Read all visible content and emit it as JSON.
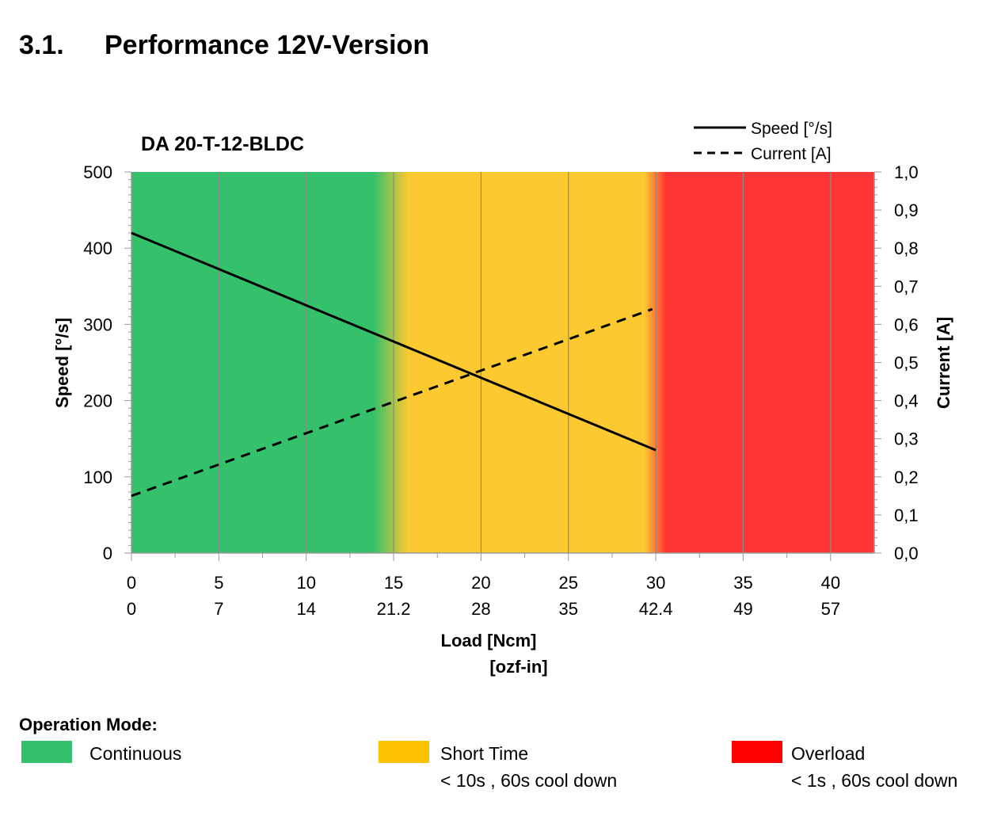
{
  "page": {
    "section_number": "3.1.",
    "section_title": "Performance 12V-Version"
  },
  "chart_data": {
    "type": "line",
    "title": "DA 20-T-12-BLDC",
    "xlabel": "Load [Ncm]",
    "xlabel2": "[ozf-in]",
    "ylabel": "Speed  [°/s]",
    "y2label": "Current  [A]",
    "xlim": [
      0,
      42.5
    ],
    "ylim": [
      0,
      500
    ],
    "y2lim": [
      0,
      1.0
    ],
    "x_ticks": [
      0,
      5,
      10,
      15,
      20,
      25,
      30,
      35,
      40
    ],
    "x_tick_labels": [
      "0",
      "5",
      "10",
      "15",
      "20",
      "25",
      "30",
      "35",
      "40"
    ],
    "x_tick_labels_secondary": [
      "0",
      "7",
      "14",
      "21.2",
      "28",
      "35",
      "42.4",
      "49",
      "57"
    ],
    "y_ticks": [
      0,
      100,
      200,
      300,
      400,
      500
    ],
    "y_tick_labels": [
      "0",
      "100",
      "200",
      "300",
      "400",
      "500"
    ],
    "y2_ticks": [
      0,
      0.1,
      0.2,
      0.3,
      0.4,
      0.5,
      0.6,
      0.7,
      0.8,
      0.9,
      1.0
    ],
    "y2_tick_labels": [
      "0,0",
      "0,1",
      "0,2",
      "0,3",
      "0,4",
      "0,5",
      "0,6",
      "0,7",
      "0,8",
      "0,9",
      "1,0"
    ],
    "grid": "vertical",
    "legend_position": "top-right",
    "series": [
      {
        "name": "Speed [°/s]",
        "axis": "left",
        "style": "solid",
        "color": "#000000",
        "x": [
          0,
          30
        ],
        "y": [
          420,
          135
        ]
      },
      {
        "name": "Current [A]",
        "axis": "right",
        "style": "dashed",
        "color": "#000000",
        "x": [
          0,
          29.8
        ],
        "y": [
          0.15,
          0.64
        ]
      }
    ],
    "zones": [
      {
        "name": "Continuous",
        "from": 0,
        "to": 15,
        "color": "#35c06b"
      },
      {
        "name": "Short Time",
        "from": 15,
        "to": 30,
        "color": "#fdc930"
      },
      {
        "name": "Overload",
        "from": 30,
        "to": 42.5,
        "color": "#ff3535"
      }
    ]
  },
  "operation_mode": {
    "title": "Operation Mode:",
    "modes": [
      {
        "label": "Continuous",
        "note": "",
        "color": "#35c06b"
      },
      {
        "label": "Short Time",
        "note": "< 10s , 60s cool down",
        "color": "#ffc000"
      },
      {
        "label": "Overload",
        "note": "< 1s , 60s cool down",
        "color": "#ff0000"
      }
    ]
  }
}
